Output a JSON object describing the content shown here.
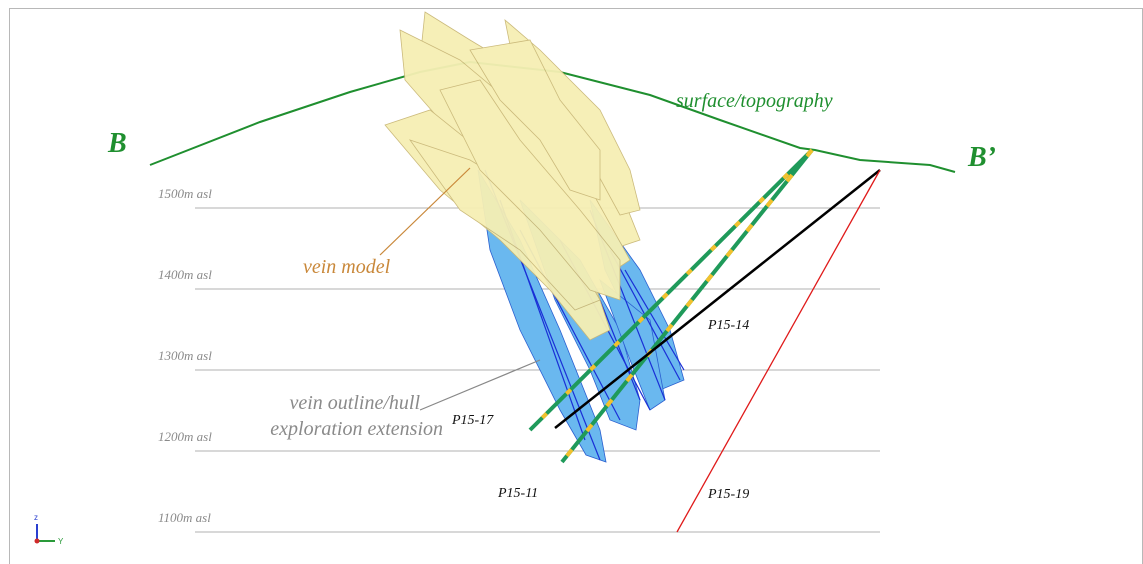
{
  "section": {
    "start_label": "B",
    "end_label": "B’",
    "surface_label": "surface/topography",
    "elevations": [
      "1500m asl",
      "1400m asl",
      "1300m asl",
      "1200m asl",
      "1100m asl"
    ],
    "annotations": {
      "vein_model": "vein model",
      "hull_line1": "vein outline/hull",
      "hull_line2": "exploration extension"
    },
    "drillholes": [
      "P15-14",
      "P15-17",
      "P15-11",
      "P15-19"
    ],
    "axes": {
      "z": "z",
      "y": "Y"
    }
  }
}
